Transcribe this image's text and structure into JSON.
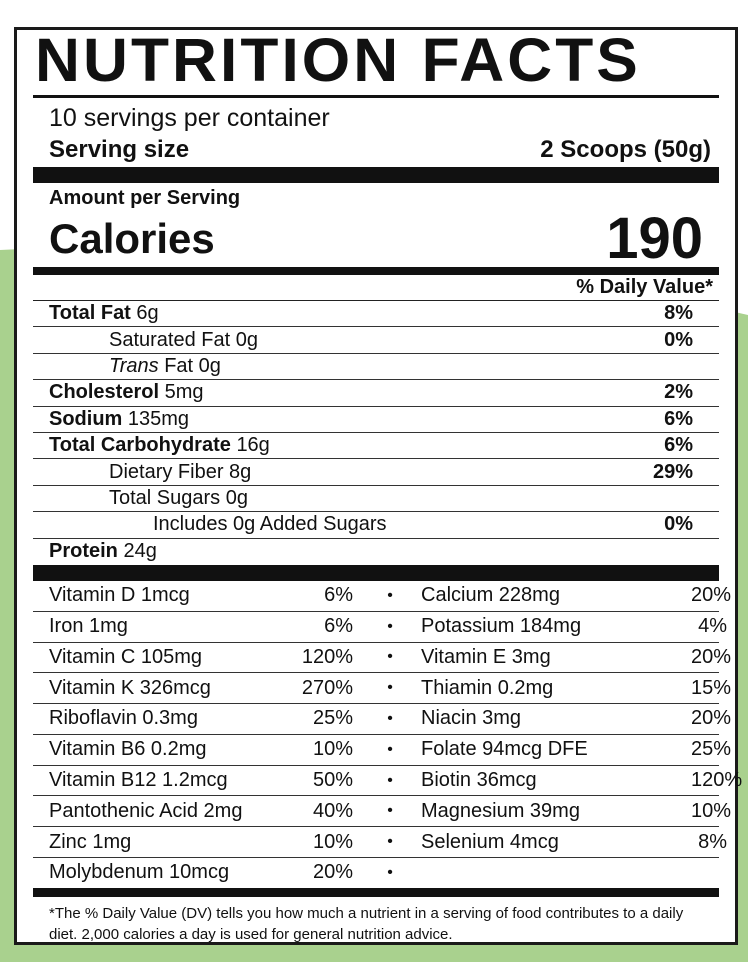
{
  "colors": {
    "background_accent": "#a9d18e",
    "label_border": "#1a1a1a"
  },
  "title": "NUTRITION FACTS",
  "servings_per_container": "10 servings per container",
  "serving_size": {
    "label": "Serving size",
    "value": "2 Scoops (50g)"
  },
  "amount_per_serving": "Amount per Serving",
  "calories": {
    "label": "Calories",
    "value": "190"
  },
  "daily_value_header": "% Daily Value*",
  "nutrients": [
    {
      "name": "Total Fat",
      "amount": "6g",
      "dv": "8%",
      "bold": true,
      "indent": 0
    },
    {
      "name": "Saturated Fat",
      "amount": "0g",
      "dv": "0%",
      "bold": false,
      "indent": 1
    },
    {
      "name": "Trans",
      "name_suffix": "Fat",
      "amount": "0g",
      "dv": "",
      "bold": false,
      "indent": 1
    },
    {
      "name": "Cholesterol",
      "amount": "5mg",
      "dv": "2%",
      "bold": true,
      "indent": 0
    },
    {
      "name": "Sodium",
      "amount": "135mg",
      "dv": "6%",
      "bold": true,
      "indent": 0
    },
    {
      "name": "Total Carbohydrate",
      "amount": "16g",
      "dv": "6%",
      "bold": true,
      "indent": 0
    },
    {
      "name": "Dietary Fiber",
      "amount": "8g",
      "dv": "29%",
      "bold": false,
      "indent": 1
    },
    {
      "name": "Total Sugars",
      "amount": "0g",
      "dv": "",
      "bold": false,
      "indent": 1
    },
    {
      "name": "Includes 0g Added Sugars",
      "amount": "",
      "dv": "0%",
      "bold": false,
      "indent": 2
    },
    {
      "name": "Protein",
      "amount": "24g",
      "dv": "",
      "bold": true,
      "indent": 0
    }
  ],
  "vitamins": [
    {
      "left": "Vitamin D 1mcg",
      "left_dv": "6%",
      "bullet": "•",
      "right": "Calcium 228mg",
      "right_dv": "20%"
    },
    {
      "left": "Iron 1mg",
      "left_dv": "6%",
      "bullet": "•",
      "right": "Potassium 184mg",
      "right_dv": "4%"
    },
    {
      "left": "Vitamin C 105mg",
      "left_dv": "120%",
      "bullet": "•",
      "right": "Vitamin E 3mg",
      "right_dv": "20%"
    },
    {
      "left": "Vitamin K 326mcg",
      "left_dv": "270%",
      "bullet": "•",
      "right": "Thiamin 0.2mg",
      "right_dv": "15%"
    },
    {
      "left": "Riboflavin 0.3mg",
      "left_dv": "25%",
      "bullet": "•",
      "right": "Niacin 3mg",
      "right_dv": "20%"
    },
    {
      "left": "Vitamin B6 0.2mg",
      "left_dv": "10%",
      "bullet": "•",
      "right": "Folate 94mcg DFE",
      "right_dv": "25%"
    },
    {
      "left": "Vitamin B12 1.2mcg",
      "left_dv": "50%",
      "bullet": "•",
      "right": "Biotin 36mcg",
      "right_dv": "120%"
    },
    {
      "left": "Pantothenic Acid 2mg",
      "left_dv": "40%",
      "bullet": "•",
      "right": "Magnesium 39mg",
      "right_dv": "10%"
    },
    {
      "left": "Zinc 1mg",
      "left_dv": "10%",
      "bullet": "•",
      "right": "Selenium 4mcg",
      "right_dv": "8%"
    },
    {
      "left": "Molybdenum 10mcg",
      "left_dv": "20%",
      "bullet": "•",
      "right": "",
      "right_dv": ""
    }
  ],
  "footnote": "*The % Daily Value (DV) tells you how much a nutrient in a serving of food contributes to a daily diet. 2,000 calories a day is used for general nutrition advice."
}
